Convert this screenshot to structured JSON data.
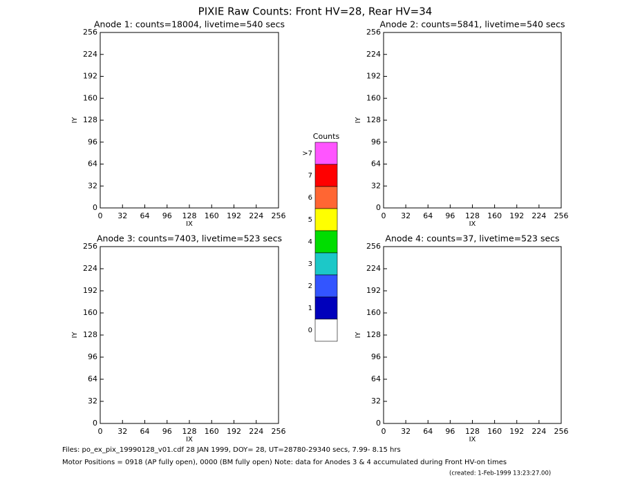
{
  "title": "PIXIE Raw Counts:  Front HV=28, Rear HV=34",
  "chart_data": [
    {
      "type": "heatmap",
      "title": "Anode 1: counts=18004, livetime=540 secs",
      "x_label": "IX",
      "y_label": "IY",
      "xlim": [
        0,
        256
      ],
      "ylim": [
        0,
        256
      ],
      "xticks": [
        0,
        32,
        64,
        96,
        128,
        160,
        192,
        224,
        256
      ],
      "yticks": [
        0,
        32,
        64,
        96,
        128,
        160,
        192,
        224,
        256
      ]
    },
    {
      "type": "heatmap",
      "title": "Anode 2: counts=5841, livetime=540 secs",
      "x_label": "IX",
      "y_label": "IY",
      "xlim": [
        0,
        256
      ],
      "ylim": [
        0,
        256
      ],
      "xticks": [
        0,
        32,
        64,
        96,
        128,
        160,
        192,
        224,
        256
      ],
      "yticks": [
        0,
        32,
        64,
        96,
        128,
        160,
        192,
        224,
        256
      ]
    },
    {
      "type": "heatmap",
      "title": "Anode 3: counts=7403, livetime=523 secs",
      "x_label": "IX",
      "y_label": "IY",
      "xlim": [
        0,
        256
      ],
      "ylim": [
        0,
        256
      ],
      "xticks": [
        0,
        32,
        64,
        96,
        128,
        160,
        192,
        224,
        256
      ],
      "yticks": [
        0,
        32,
        64,
        96,
        128,
        160,
        192,
        224,
        256
      ]
    },
    {
      "type": "heatmap",
      "title": "Anode 4: counts=37, livetime=523 secs",
      "x_label": "IX",
      "y_label": "IY",
      "xlim": [
        0,
        256
      ],
      "ylim": [
        0,
        256
      ],
      "xticks": [
        0,
        32,
        64,
        96,
        128,
        160,
        192,
        224,
        256
      ],
      "yticks": [
        0,
        32,
        64,
        96,
        128,
        160,
        192,
        224,
        256
      ]
    }
  ],
  "colorbar": {
    "title": "Counts",
    "levels": [
      {
        "label": ">7",
        "color": "#ff55ff"
      },
      {
        "label": "7",
        "color": "#ff0000"
      },
      {
        "label": "6",
        "color": "#ff6633"
      },
      {
        "label": "5",
        "color": "#ffff00"
      },
      {
        "label": "4",
        "color": "#00dd00"
      },
      {
        "label": "3",
        "color": "#1cc8c8"
      },
      {
        "label": "2",
        "color": "#3355ff"
      },
      {
        "label": "1",
        "color": "#0000bb"
      },
      {
        "label": "0",
        "color": "#ffffff"
      }
    ]
  },
  "footer": {
    "lines": [
      "Files: po_ex_pix_19990128_v01.cdf   28 JAN 1999, DOY= 28, UT=28780-29340 secs,  7.99- 8.15 hrs",
      "Motor Positions = 0918 (AP fully open), 0000 (BM fully open)    Note: data for Anodes 3 & 4 accumulated during Front HV-on times",
      "(created:  1-Feb-1999 13:23:27.00)"
    ]
  }
}
